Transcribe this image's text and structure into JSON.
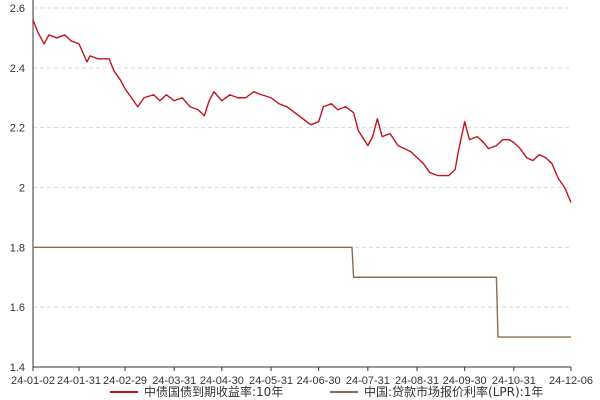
{
  "chart_data": {
    "type": "line",
    "title": "",
    "xlabel": "",
    "ylabel": "",
    "ylim": [
      1.4,
      2.6
    ],
    "y_ticks": [
      1.4,
      1.6,
      1.8,
      2,
      2.2,
      2.4,
      2.6
    ],
    "x_tick_labels": [
      "24-01-02",
      "24-01-31",
      "24-02-29",
      "24-03-31",
      "24-04-30",
      "24-05-31",
      "24-06-30",
      "24-07-31",
      "24-08-31",
      "24-09-30",
      "24-10-31",
      "24-12-06"
    ],
    "grid": "horizontal-dashed",
    "legend_position": "bottom",
    "series": [
      {
        "name": "中债国债到期收益率:10年",
        "color": "#c0141e",
        "points": [
          [
            "24-01-02",
            2.56
          ],
          [
            "24-01-05",
            2.52
          ],
          [
            "24-01-09",
            2.48
          ],
          [
            "24-01-12",
            2.51
          ],
          [
            "24-01-17",
            2.5
          ],
          [
            "24-01-22",
            2.51
          ],
          [
            "24-01-26",
            2.49
          ],
          [
            "24-01-31",
            2.48
          ],
          [
            "24-02-05",
            2.42
          ],
          [
            "24-02-07",
            2.44
          ],
          [
            "24-02-12",
            2.43
          ],
          [
            "24-02-19",
            2.43
          ],
          [
            "24-02-22",
            2.39
          ],
          [
            "24-02-26",
            2.36
          ],
          [
            "24-02-29",
            2.33
          ],
          [
            "24-03-04",
            2.3
          ],
          [
            "24-03-08",
            2.27
          ],
          [
            "24-03-12",
            2.3
          ],
          [
            "24-03-18",
            2.31
          ],
          [
            "24-03-22",
            2.29
          ],
          [
            "24-03-26",
            2.31
          ],
          [
            "24-03-31",
            2.29
          ],
          [
            "24-04-05",
            2.3
          ],
          [
            "24-04-10",
            2.27
          ],
          [
            "24-04-15",
            2.26
          ],
          [
            "24-04-19",
            2.24
          ],
          [
            "24-04-22",
            2.29
          ],
          [
            "24-04-25",
            2.32
          ],
          [
            "24-04-30",
            2.29
          ],
          [
            "24-05-05",
            2.31
          ],
          [
            "24-05-10",
            2.3
          ],
          [
            "24-05-15",
            2.3
          ],
          [
            "24-05-20",
            2.32
          ],
          [
            "24-05-25",
            2.31
          ],
          [
            "24-05-31",
            2.3
          ],
          [
            "24-06-05",
            2.28
          ],
          [
            "24-06-10",
            2.27
          ],
          [
            "24-06-15",
            2.25
          ],
          [
            "24-06-20",
            2.23
          ],
          [
            "24-06-25",
            2.21
          ],
          [
            "24-06-30",
            2.22
          ],
          [
            "24-07-03",
            2.27
          ],
          [
            "24-07-08",
            2.28
          ],
          [
            "24-07-12",
            2.26
          ],
          [
            "24-07-17",
            2.27
          ],
          [
            "24-07-22",
            2.25
          ],
          [
            "24-07-25",
            2.19
          ],
          [
            "24-07-31",
            2.14
          ],
          [
            "24-08-03",
            2.17
          ],
          [
            "24-08-06",
            2.23
          ],
          [
            "24-08-09",
            2.17
          ],
          [
            "24-08-14",
            2.18
          ],
          [
            "24-08-19",
            2.14
          ],
          [
            "24-08-23",
            2.13
          ],
          [
            "24-08-27",
            2.12
          ],
          [
            "24-08-31",
            2.1
          ],
          [
            "24-09-04",
            2.08
          ],
          [
            "24-09-08",
            2.05
          ],
          [
            "24-09-13",
            2.04
          ],
          [
            "24-09-20",
            2.04
          ],
          [
            "24-09-24",
            2.06
          ],
          [
            "24-09-26",
            2.12
          ],
          [
            "24-09-30",
            2.22
          ],
          [
            "24-10-03",
            2.16
          ],
          [
            "24-10-08",
            2.17
          ],
          [
            "24-10-12",
            2.15
          ],
          [
            "24-10-15",
            2.13
          ],
          [
            "24-10-20",
            2.14
          ],
          [
            "24-10-24",
            2.16
          ],
          [
            "24-10-28",
            2.16
          ],
          [
            "24-10-31",
            2.15
          ],
          [
            "24-11-04",
            2.13
          ],
          [
            "24-11-08",
            2.1
          ],
          [
            "24-11-12",
            2.09
          ],
          [
            "24-11-16",
            2.11
          ],
          [
            "24-11-20",
            2.1
          ],
          [
            "24-11-24",
            2.08
          ],
          [
            "24-11-28",
            2.03
          ],
          [
            "24-12-02",
            2.0
          ],
          [
            "24-12-06",
            1.95
          ]
        ]
      },
      {
        "name": "中国:贷款市场报价利率(LPR):1年",
        "color": "#8b6e52",
        "points": [
          [
            "24-01-02",
            1.8
          ],
          [
            "24-07-21",
            1.8
          ],
          [
            "24-07-22",
            1.7
          ],
          [
            "24-10-20",
            1.7
          ],
          [
            "24-10-21",
            1.5
          ],
          [
            "24-12-06",
            1.5
          ]
        ]
      }
    ]
  }
}
